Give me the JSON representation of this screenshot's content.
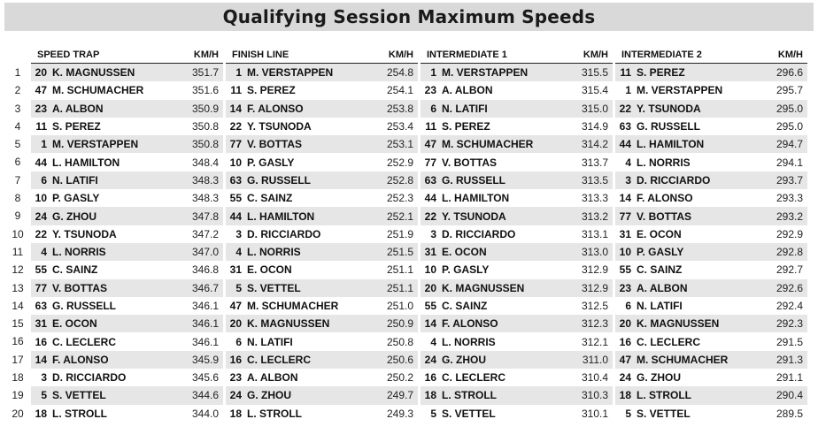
{
  "title": "Qualifying Session Maximum Speeds",
  "unit_label": "KM/H",
  "positions": [
    "1",
    "2",
    "3",
    "4",
    "5",
    "6",
    "7",
    "8",
    "9",
    "10",
    "11",
    "12",
    "13",
    "14",
    "15",
    "16",
    "17",
    "18",
    "19",
    "20"
  ],
  "sections": [
    {
      "name": "SPEED TRAP",
      "rows": [
        {
          "num": "20",
          "driver": "K. MAGNUSSEN",
          "speed": "351.7"
        },
        {
          "num": "47",
          "driver": "M. SCHUMACHER",
          "speed": "351.6"
        },
        {
          "num": "23",
          "driver": "A. ALBON",
          "speed": "350.9"
        },
        {
          "num": "11",
          "driver": "S. PEREZ",
          "speed": "350.8"
        },
        {
          "num": "1",
          "driver": "M. VERSTAPPEN",
          "speed": "350.8"
        },
        {
          "num": "44",
          "driver": "L. HAMILTON",
          "speed": "348.4"
        },
        {
          "num": "6",
          "driver": "N. LATIFI",
          "speed": "348.3"
        },
        {
          "num": "10",
          "driver": "P. GASLY",
          "speed": "348.3"
        },
        {
          "num": "24",
          "driver": "G. ZHOU",
          "speed": "347.8"
        },
        {
          "num": "22",
          "driver": "Y. TSUNODA",
          "speed": "347.2"
        },
        {
          "num": "4",
          "driver": "L. NORRIS",
          "speed": "347.0"
        },
        {
          "num": "55",
          "driver": "C. SAINZ",
          "speed": "346.8"
        },
        {
          "num": "77",
          "driver": "V. BOTTAS",
          "speed": "346.7"
        },
        {
          "num": "63",
          "driver": "G. RUSSELL",
          "speed": "346.1"
        },
        {
          "num": "31",
          "driver": "E. OCON",
          "speed": "346.1"
        },
        {
          "num": "16",
          "driver": "C. LECLERC",
          "speed": "346.1"
        },
        {
          "num": "14",
          "driver": "F. ALONSO",
          "speed": "345.9"
        },
        {
          "num": "3",
          "driver": "D. RICCIARDO",
          "speed": "345.6"
        },
        {
          "num": "5",
          "driver": "S. VETTEL",
          "speed": "344.6"
        },
        {
          "num": "18",
          "driver": "L. STROLL",
          "speed": "344.0"
        }
      ]
    },
    {
      "name": "FINISH LINE",
      "rows": [
        {
          "num": "1",
          "driver": "M. VERSTAPPEN",
          "speed": "254.8"
        },
        {
          "num": "11",
          "driver": "S. PEREZ",
          "speed": "254.1"
        },
        {
          "num": "14",
          "driver": "F. ALONSO",
          "speed": "253.8"
        },
        {
          "num": "22",
          "driver": "Y. TSUNODA",
          "speed": "253.4"
        },
        {
          "num": "77",
          "driver": "V. BOTTAS",
          "speed": "253.1"
        },
        {
          "num": "10",
          "driver": "P. GASLY",
          "speed": "252.9"
        },
        {
          "num": "63",
          "driver": "G. RUSSELL",
          "speed": "252.8"
        },
        {
          "num": "55",
          "driver": "C. SAINZ",
          "speed": "252.3"
        },
        {
          "num": "44",
          "driver": "L. HAMILTON",
          "speed": "252.1"
        },
        {
          "num": "3",
          "driver": "D. RICCIARDO",
          "speed": "251.9"
        },
        {
          "num": "4",
          "driver": "L. NORRIS",
          "speed": "251.5"
        },
        {
          "num": "31",
          "driver": "E. OCON",
          "speed": "251.1"
        },
        {
          "num": "5",
          "driver": "S. VETTEL",
          "speed": "251.1"
        },
        {
          "num": "47",
          "driver": "M. SCHUMACHER",
          "speed": "251.0"
        },
        {
          "num": "20",
          "driver": "K. MAGNUSSEN",
          "speed": "250.9"
        },
        {
          "num": "6",
          "driver": "N. LATIFI",
          "speed": "250.8"
        },
        {
          "num": "16",
          "driver": "C. LECLERC",
          "speed": "250.6"
        },
        {
          "num": "23",
          "driver": "A. ALBON",
          "speed": "250.2"
        },
        {
          "num": "24",
          "driver": "G. ZHOU",
          "speed": "249.7"
        },
        {
          "num": "18",
          "driver": "L. STROLL",
          "speed": "249.3"
        }
      ]
    },
    {
      "name": "INTERMEDIATE 1",
      "rows": [
        {
          "num": "1",
          "driver": "M. VERSTAPPEN",
          "speed": "315.5"
        },
        {
          "num": "23",
          "driver": "A. ALBON",
          "speed": "315.4"
        },
        {
          "num": "6",
          "driver": "N. LATIFI",
          "speed": "315.0"
        },
        {
          "num": "11",
          "driver": "S. PEREZ",
          "speed": "314.9"
        },
        {
          "num": "47",
          "driver": "M. SCHUMACHER",
          "speed": "314.2"
        },
        {
          "num": "77",
          "driver": "V. BOTTAS",
          "speed": "313.7"
        },
        {
          "num": "63",
          "driver": "G. RUSSELL",
          "speed": "313.5"
        },
        {
          "num": "44",
          "driver": "L. HAMILTON",
          "speed": "313.3"
        },
        {
          "num": "22",
          "driver": "Y. TSUNODA",
          "speed": "313.2"
        },
        {
          "num": "3",
          "driver": "D. RICCIARDO",
          "speed": "313.1"
        },
        {
          "num": "31",
          "driver": "E. OCON",
          "speed": "313.0"
        },
        {
          "num": "10",
          "driver": "P. GASLY",
          "speed": "312.9"
        },
        {
          "num": "20",
          "driver": "K. MAGNUSSEN",
          "speed": "312.9"
        },
        {
          "num": "55",
          "driver": "C. SAINZ",
          "speed": "312.5"
        },
        {
          "num": "14",
          "driver": "F. ALONSO",
          "speed": "312.3"
        },
        {
          "num": "4",
          "driver": "L. NORRIS",
          "speed": "312.1"
        },
        {
          "num": "24",
          "driver": "G. ZHOU",
          "speed": "311.0"
        },
        {
          "num": "16",
          "driver": "C. LECLERC",
          "speed": "310.4"
        },
        {
          "num": "18",
          "driver": "L. STROLL",
          "speed": "310.3"
        },
        {
          "num": "5",
          "driver": "S. VETTEL",
          "speed": "310.1"
        }
      ]
    },
    {
      "name": "INTERMEDIATE 2",
      "rows": [
        {
          "num": "11",
          "driver": "S. PEREZ",
          "speed": "296.6"
        },
        {
          "num": "1",
          "driver": "M. VERSTAPPEN",
          "speed": "295.7"
        },
        {
          "num": "22",
          "driver": "Y. TSUNODA",
          "speed": "295.0"
        },
        {
          "num": "63",
          "driver": "G. RUSSELL",
          "speed": "295.0"
        },
        {
          "num": "44",
          "driver": "L. HAMILTON",
          "speed": "294.7"
        },
        {
          "num": "4",
          "driver": "L. NORRIS",
          "speed": "294.1"
        },
        {
          "num": "3",
          "driver": "D. RICCIARDO",
          "speed": "293.7"
        },
        {
          "num": "14",
          "driver": "F. ALONSO",
          "speed": "293.3"
        },
        {
          "num": "77",
          "driver": "V. BOTTAS",
          "speed": "293.2"
        },
        {
          "num": "31",
          "driver": "E. OCON",
          "speed": "292.9"
        },
        {
          "num": "10",
          "driver": "P. GASLY",
          "speed": "292.8"
        },
        {
          "num": "55",
          "driver": "C. SAINZ",
          "speed": "292.7"
        },
        {
          "num": "23",
          "driver": "A. ALBON",
          "speed": "292.6"
        },
        {
          "num": "6",
          "driver": "N. LATIFI",
          "speed": "292.4"
        },
        {
          "num": "20",
          "driver": "K. MAGNUSSEN",
          "speed": "292.3"
        },
        {
          "num": "16",
          "driver": "C. LECLERC",
          "speed": "291.5"
        },
        {
          "num": "47",
          "driver": "M. SCHUMACHER",
          "speed": "291.3"
        },
        {
          "num": "24",
          "driver": "G. ZHOU",
          "speed": "291.1"
        },
        {
          "num": "18",
          "driver": "L. STROLL",
          "speed": "290.4"
        },
        {
          "num": "5",
          "driver": "S. VETTEL",
          "speed": "289.5"
        }
      ]
    }
  ]
}
